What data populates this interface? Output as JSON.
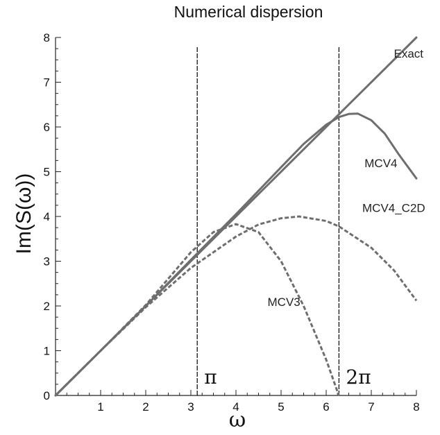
{
  "chart_data": {
    "type": "line",
    "title": "Numerical dispersion",
    "xlabel": "ω",
    "ylabel": "Im(S(ω))",
    "xlim": [
      0,
      8
    ],
    "ylim": [
      0,
      8
    ],
    "xticks": [
      1,
      2,
      3,
      4,
      5,
      6,
      7,
      8
    ],
    "yticks": [
      0,
      1,
      2,
      3,
      4,
      5,
      6,
      7,
      8
    ],
    "grid": false,
    "markers": [
      {
        "label": "π",
        "x": 3.1416
      },
      {
        "label": "2π",
        "x": 6.2832
      }
    ],
    "series": [
      {
        "name": "Exact",
        "style": "solid",
        "x": [
          0,
          8
        ],
        "y": [
          0,
          8
        ]
      },
      {
        "name": "MCV4",
        "style": "solid",
        "x": [
          0,
          1,
          2,
          3,
          4,
          5,
          5.5,
          6,
          6.28,
          6.5,
          6.7,
          7,
          7.3,
          7.6,
          8
        ],
        "y": [
          0,
          1,
          2,
          3.03,
          4.05,
          5.1,
          5.62,
          6.05,
          6.22,
          6.29,
          6.3,
          6.15,
          5.85,
          5.4,
          4.85
        ]
      },
      {
        "name": "MCV4_C2D",
        "style": "dashed",
        "x": [
          0,
          1,
          2,
          3,
          4,
          4.5,
          5,
          5.4,
          6,
          6.28,
          7,
          7.5,
          8
        ],
        "y": [
          0,
          1,
          1.97,
          2.85,
          3.55,
          3.82,
          3.96,
          4.0,
          3.9,
          3.78,
          3.3,
          2.8,
          2.12
        ]
      },
      {
        "name": "MCV3",
        "style": "dashed",
        "x": [
          0,
          1,
          2,
          3,
          3.5,
          4,
          4.5,
          5,
          5.5,
          6,
          6.28
        ],
        "y": [
          0,
          1,
          2.02,
          3.2,
          3.65,
          3.83,
          3.65,
          3.0,
          2.0,
          0.8,
          0
        ]
      }
    ]
  }
}
